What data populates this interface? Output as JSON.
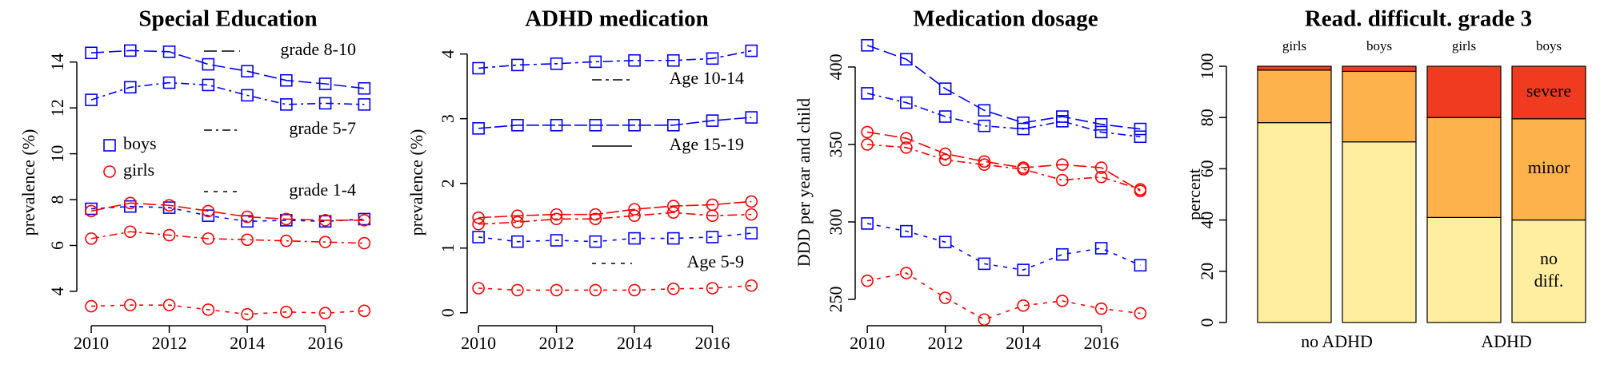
{
  "chart_data": [
    {
      "type": "line",
      "title": "Special Education",
      "ylabel": "prevalence (%)",
      "x": [
        2010,
        2011,
        2012,
        2013,
        2014,
        2015,
        2016,
        2017
      ],
      "xlim": [
        2009.63,
        2017.3
      ],
      "xticks": [
        2010,
        2012,
        2014,
        2016
      ],
      "ylim": [
        2.5,
        15
      ],
      "yticks": [
        4,
        6,
        8,
        10,
        12,
        14
      ],
      "legend": {
        "lines": [
          {
            "name": "grade 8-10",
            "dash": "16,6"
          },
          {
            "name": "grade 5-7",
            "dash": "10,5,3,5"
          },
          {
            "name": "grade 1-4",
            "dash": "5,7"
          }
        ],
        "markers": [
          {
            "name": "boys",
            "color": "#0000ff",
            "marker": "square"
          },
          {
            "name": "girls",
            "color": "#ff0000",
            "marker": "circle"
          }
        ]
      },
      "series": [
        {
          "color": "#0000ff",
          "marker": "square",
          "dash": "16,6",
          "values": [
            14.4,
            14.5,
            14.45,
            13.9,
            13.6,
            13.2,
            13.05,
            12.85
          ]
        },
        {
          "color": "#0000ff",
          "marker": "square",
          "dash": "10,5,3,5",
          "values": [
            12.35,
            12.9,
            13.1,
            13.0,
            12.55,
            12.15,
            12.2,
            12.15
          ]
        },
        {
          "color": "#0000ff",
          "marker": "square",
          "dash": "5,7",
          "values": [
            7.6,
            7.7,
            7.65,
            7.3,
            7.05,
            7.1,
            7.05,
            7.15
          ]
        },
        {
          "color": "#ff0000",
          "marker": "circle",
          "dash": "16,6",
          "values": [
            7.5,
            7.85,
            7.75,
            7.5,
            7.25,
            7.15,
            7.1,
            7.1
          ]
        },
        {
          "color": "#ff0000",
          "marker": "circle",
          "dash": "10,5,3,5",
          "values": [
            6.3,
            6.6,
            6.45,
            6.3,
            6.25,
            6.2,
            6.15,
            6.1
          ]
        },
        {
          "color": "#ff0000",
          "marker": "circle",
          "dash": "5,7",
          "values": [
            3.35,
            3.4,
            3.4,
            3.2,
            3.0,
            3.1,
            3.05,
            3.15
          ]
        }
      ]
    },
    {
      "type": "line",
      "title": "ADHD medication",
      "ylabel": "prevalence (%)",
      "x": [
        2010,
        2011,
        2012,
        2013,
        2014,
        2015,
        2016,
        2017
      ],
      "xlim": [
        2009.71,
        2017.2
      ],
      "xticks": [
        2010,
        2012,
        2014,
        2016
      ],
      "ylim": [
        -0.2,
        4.23
      ],
      "yticks": [
        0,
        1,
        2,
        3,
        4
      ],
      "legend": {
        "lines": [
          {
            "name": "Age 10-14",
            "dash": "12,5,4,5"
          },
          {
            "name": "Age 15-19",
            "dash": ""
          },
          {
            "name": "Age 5-9",
            "dash": "5,7"
          }
        ],
        "markers": []
      },
      "series": [
        {
          "color": "#0000ff",
          "marker": "square",
          "dash": "12,5,4,5",
          "values": [
            3.78,
            3.83,
            3.85,
            3.88,
            3.9,
            3.9,
            3.93,
            4.05
          ]
        },
        {
          "color": "#0000ff",
          "marker": "square",
          "dash": "16,4",
          "values": [
            2.85,
            2.9,
            2.9,
            2.9,
            2.9,
            2.9,
            2.97,
            3.02
          ]
        },
        {
          "color": "#0000ff",
          "marker": "square",
          "dash": "5,7",
          "values": [
            1.17,
            1.1,
            1.12,
            1.1,
            1.15,
            1.15,
            1.17,
            1.23
          ]
        },
        {
          "color": "#ff0000",
          "marker": "circle",
          "dash": "16,4",
          "values": [
            1.47,
            1.5,
            1.52,
            1.52,
            1.6,
            1.65,
            1.67,
            1.72
          ]
        },
        {
          "color": "#ff0000",
          "marker": "circle",
          "dash": "12,5,4,5",
          "values": [
            1.37,
            1.4,
            1.45,
            1.45,
            1.5,
            1.55,
            1.5,
            1.52
          ]
        },
        {
          "color": "#ff0000",
          "marker": "circle",
          "dash": "5,7",
          "values": [
            0.38,
            0.35,
            0.35,
            0.35,
            0.35,
            0.37,
            0.38,
            0.42
          ]
        }
      ]
    },
    {
      "type": "line",
      "title": "Medication dosage",
      "ylabel": "DDD per year and child",
      "x": [
        2010,
        2011,
        2012,
        2013,
        2014,
        2015,
        2016,
        2017
      ],
      "xlim": [
        2009.69,
        2017.3
      ],
      "xticks": [
        2010,
        2012,
        2014,
        2016
      ],
      "ylim": [
        233,
        418
      ],
      "yticks": [
        250,
        300,
        350,
        400
      ],
      "series": [
        {
          "color": "#0000ff",
          "marker": "square",
          "dash": "16,6",
          "values": [
            414,
            405,
            386,
            372,
            364,
            368,
            363,
            360
          ]
        },
        {
          "color": "#0000ff",
          "marker": "square",
          "dash": "10,5,3,5",
          "values": [
            383,
            377,
            368,
            362,
            360,
            365,
            358,
            355
          ]
        },
        {
          "color": "#0000ff",
          "marker": "square",
          "dash": "5,7",
          "values": [
            299,
            294,
            287,
            273,
            269,
            279,
            283,
            272
          ]
        },
        {
          "color": "#ff0000",
          "marker": "circle",
          "dash": "16,6",
          "values": [
            358,
            354,
            344,
            339,
            335,
            337,
            335,
            320
          ]
        },
        {
          "color": "#ff0000",
          "marker": "circle",
          "dash": "10,5,3,5",
          "values": [
            350,
            348,
            340,
            337,
            334,
            327,
            329,
            321
          ]
        },
        {
          "color": "#ff0000",
          "marker": "circle",
          "dash": "5,7",
          "values": [
            262,
            267,
            251,
            237,
            246,
            249,
            244,
            241
          ]
        }
      ]
    },
    {
      "type": "stacked_bar",
      "title": "Read. difficult. grade 3",
      "ylabel": "percent",
      "categories": [
        "girls",
        "boys",
        "girls",
        "boys"
      ],
      "groups": [
        "no ADHD",
        "ADHD"
      ],
      "ylim": [
        0,
        100
      ],
      "yticks": [
        0,
        20,
        40,
        60,
        80,
        100
      ],
      "series": [
        {
          "name": "no diff.",
          "color": "#ffeda0",
          "values": [
            78,
            70.5,
            41,
            40
          ]
        },
        {
          "name": "minor",
          "color": "#feb24c",
          "values": [
            20.5,
            27.5,
            39,
            39.5
          ]
        },
        {
          "name": "severe",
          "color": "#f03b20",
          "values": [
            1.5,
            2,
            20,
            20.5
          ]
        }
      ]
    }
  ]
}
